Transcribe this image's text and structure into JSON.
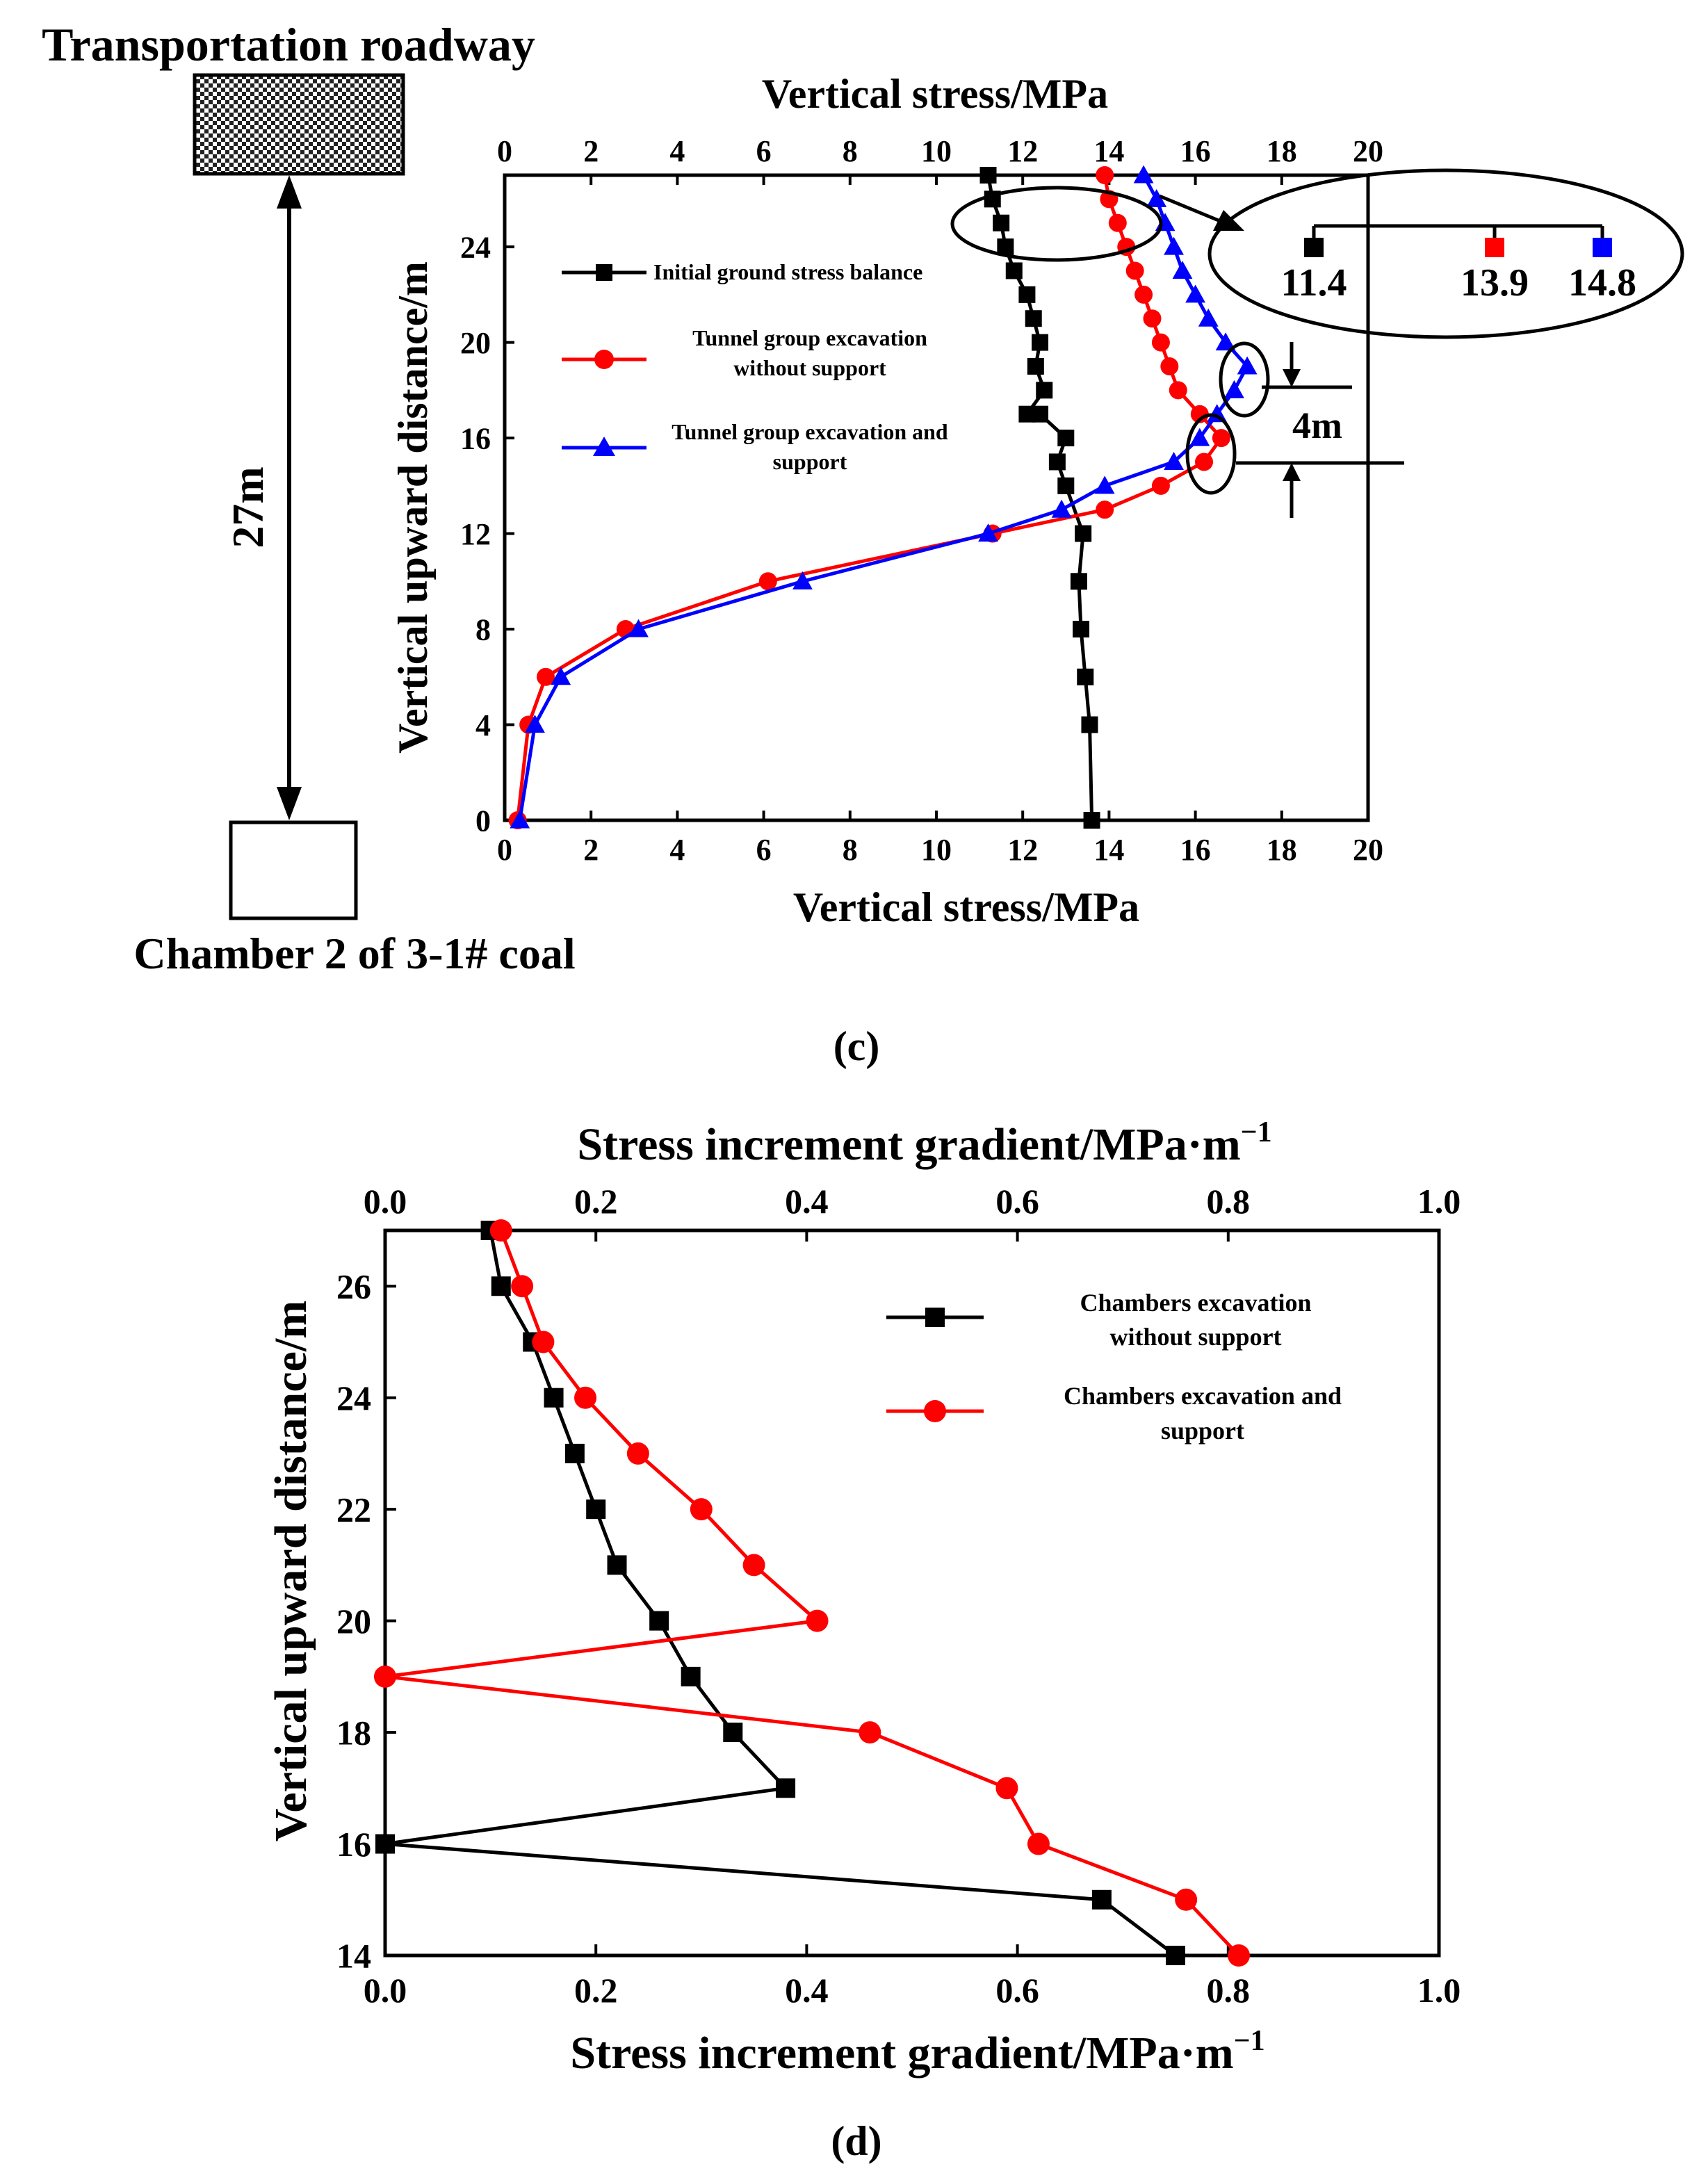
{
  "panel_c": {
    "schematic": {
      "top_label": "Transportation roadway",
      "bottom_label": "Chamber 2 of 3-1# coal",
      "distance_label": "27m"
    },
    "caption": "(c)",
    "peak_gap_label": "4m",
    "callout": {
      "values": [
        "11.4",
        "13.9",
        "14.8"
      ],
      "colors": [
        "#000000",
        "#ff0000",
        "#0000ff"
      ]
    }
  },
  "panel_d": {
    "caption": "(d)",
    "top_xlabel": "Stress increment gradient/MPa·m",
    "bottom_xlabel": "Stress increment gradient/MPa·m",
    "unit_superscript": "−1"
  },
  "chart_data": [
    {
      "type": "line",
      "id": "c",
      "xlabel": "Vertical stress/MPa",
      "top_xlabel": "Vertical stress/MPa",
      "ylabel": "Vertical upward distance/m",
      "xlim": [
        0,
        20
      ],
      "ylim": [
        0,
        27
      ],
      "xticks": [
        0,
        2,
        4,
        6,
        8,
        10,
        12,
        14,
        16,
        18,
        20
      ],
      "xtick_labels": [
        "0",
        "2",
        "4",
        "6",
        "8",
        "10",
        "12",
        "14",
        "16",
        "18",
        "20"
      ],
      "yticks": [
        0,
        4,
        8,
        12,
        16,
        20,
        24
      ],
      "ytick_labels": [
        "0",
        "4",
        "8",
        "12",
        "16",
        "20",
        "24"
      ],
      "legend_position": "left-upper",
      "series": [
        {
          "name": "Initial ground stress balance",
          "color": "#000000",
          "marker": "square",
          "points": [
            [
              13.6,
              0
            ],
            [
              13.55,
              4
            ],
            [
              13.45,
              6
            ],
            [
              13.35,
              8
            ],
            [
              13.3,
              10
            ],
            [
              13.4,
              12
            ],
            [
              13.0,
              14
            ],
            [
              12.8,
              15
            ],
            [
              13.0,
              16
            ],
            [
              12.4,
              17
            ],
            [
              12.1,
              17
            ],
            [
              12.5,
              18
            ],
            [
              12.3,
              19
            ],
            [
              12.4,
              20
            ],
            [
              12.25,
              21
            ],
            [
              12.1,
              22
            ],
            [
              11.8,
              23
            ],
            [
              11.6,
              24
            ],
            [
              11.5,
              25
            ],
            [
              11.3,
              26
            ],
            [
              11.2,
              27
            ]
          ]
        },
        {
          "name": "Tunnel group excavation without support",
          "color": "#ff0000",
          "marker": "circle",
          "points": [
            [
              0.3,
              0
            ],
            [
              0.55,
              4
            ],
            [
              0.95,
              6
            ],
            [
              2.8,
              8
            ],
            [
              6.1,
              10
            ],
            [
              11.3,
              12
            ],
            [
              13.9,
              13
            ],
            [
              15.2,
              14
            ],
            [
              16.2,
              15
            ],
            [
              16.6,
              16
            ],
            [
              16.1,
              17
            ],
            [
              15.6,
              18
            ],
            [
              15.4,
              19
            ],
            [
              15.2,
              20
            ],
            [
              15.0,
              21
            ],
            [
              14.8,
              22
            ],
            [
              14.6,
              23
            ],
            [
              14.4,
              24
            ],
            [
              14.2,
              25
            ],
            [
              14.0,
              26
            ],
            [
              13.9,
              27
            ]
          ]
        },
        {
          "name": "Tunnel group excavation and support",
          "color": "#0000ff",
          "marker": "triangle",
          "points": [
            [
              0.35,
              0
            ],
            [
              0.7,
              4
            ],
            [
              1.3,
              6
            ],
            [
              3.1,
              8
            ],
            [
              6.9,
              10
            ],
            [
              11.2,
              12
            ],
            [
              12.9,
              13
            ],
            [
              13.9,
              14
            ],
            [
              15.5,
              15
            ],
            [
              16.1,
              16
            ],
            [
              16.5,
              17
            ],
            [
              16.9,
              18
            ],
            [
              17.2,
              19
            ],
            [
              16.7,
              20
            ],
            [
              16.3,
              21
            ],
            [
              16.0,
              22
            ],
            [
              15.7,
              23
            ],
            [
              15.5,
              24
            ],
            [
              15.3,
              25
            ],
            [
              15.1,
              26
            ],
            [
              14.8,
              27
            ]
          ]
        }
      ]
    },
    {
      "type": "line",
      "id": "d",
      "ylabel": "Vertical upward distance/m",
      "xlim": [
        0,
        1.0
      ],
      "ylim": [
        14,
        27
      ],
      "xticks": [
        0,
        0.2,
        0.4,
        0.6,
        0.8,
        1.0
      ],
      "xtick_labels": [
        "0.0",
        "0.2",
        "0.4",
        "0.6",
        "0.8",
        "1.0"
      ],
      "yticks": [
        14,
        16,
        18,
        20,
        22,
        24,
        26
      ],
      "ytick_labels": [
        "14",
        "16",
        "18",
        "20",
        "22",
        "24",
        "26"
      ],
      "legend_position": "top-right",
      "series": [
        {
          "name_lines": [
            "Chambers excavation",
            "without support"
          ],
          "color": "#000000",
          "marker": "square",
          "points": [
            [
              0.75,
              14
            ],
            [
              0.68,
              15
            ],
            [
              0.0,
              16
            ],
            [
              0.38,
              17
            ],
            [
              0.33,
              18
            ],
            [
              0.29,
              19
            ],
            [
              0.26,
              20
            ],
            [
              0.22,
              21
            ],
            [
              0.2,
              22
            ],
            [
              0.18,
              23
            ],
            [
              0.16,
              24
            ],
            [
              0.14,
              25
            ],
            [
              0.11,
              26
            ],
            [
              0.1,
              27
            ]
          ]
        },
        {
          "name_lines": [
            "Chambers excavation and",
            "support"
          ],
          "color": "#ff0000",
          "marker": "circle",
          "points": [
            [
              0.81,
              14
            ],
            [
              0.76,
              15
            ],
            [
              0.62,
              16
            ],
            [
              0.59,
              17
            ],
            [
              0.46,
              18
            ],
            [
              0.0,
              19
            ],
            [
              0.41,
              20
            ],
            [
              0.35,
              21
            ],
            [
              0.3,
              22
            ],
            [
              0.24,
              23
            ],
            [
              0.19,
              24
            ],
            [
              0.15,
              25
            ],
            [
              0.13,
              26
            ],
            [
              0.11,
              27
            ]
          ]
        }
      ]
    }
  ]
}
